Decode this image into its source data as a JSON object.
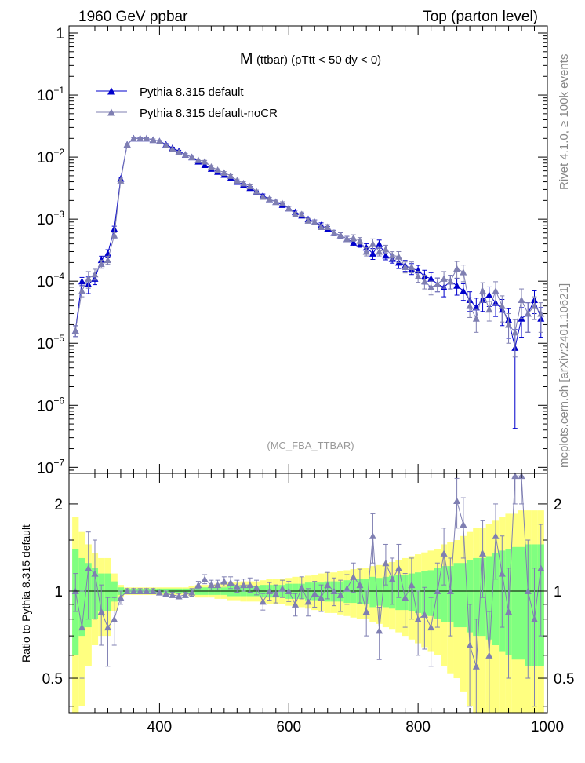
{
  "header": {
    "left": "1960 GeV ppbar",
    "right": "Top (parton level)",
    "side_top": "Rivet 4.1.0, ≥ 100k events",
    "side_bottom": "mcplots.cern.ch [arXiv:2401.10621]",
    "analysis": "(MC_FBA_TTBAR)"
  },
  "colors": {
    "default": "#0000cc",
    "nocr": "#7f7fb2",
    "band_yellow": "#ffff80",
    "band_green": "#80ff80"
  },
  "chart_data": [
    {
      "id": "main",
      "type": "line",
      "title": "M (ttbar) (pTtt < 50 dy < 0)",
      "title_main": "M",
      "title_sub": "(ttbar) (pTtt < 50 dy < 0)",
      "yscale": "log",
      "xlim": [
        260,
        1000
      ],
      "ylim": [
        8e-08,
        1.3
      ],
      "ytick_labels": [
        {
          "b": "1",
          "e": ""
        },
        {
          "b": "10",
          "e": "−1"
        },
        {
          "b": "10",
          "e": "−2"
        },
        {
          "b": "10",
          "e": "−3"
        },
        {
          "b": "10",
          "e": "−4"
        },
        {
          "b": "10",
          "e": "−5"
        },
        {
          "b": "10",
          "e": "−6"
        },
        {
          "b": "10",
          "e": "−7"
        }
      ],
      "legend": [
        "Pythia 8.315 default",
        "Pythia 8.315 default-noCR"
      ],
      "legend_position": "top-left",
      "series": [
        {
          "name": "Pythia 8.315 default",
          "x": [
            270,
            280,
            290,
            300,
            310,
            320,
            330,
            340,
            350,
            360,
            370,
            380,
            390,
            400,
            410,
            420,
            430,
            440,
            450,
            460,
            470,
            480,
            490,
            500,
            510,
            520,
            530,
            540,
            550,
            560,
            570,
            580,
            590,
            600,
            610,
            620,
            630,
            640,
            650,
            660,
            670,
            680,
            690,
            700,
            710,
            720,
            730,
            740,
            750,
            760,
            770,
            780,
            790,
            800,
            810,
            820,
            830,
            840,
            850,
            860,
            870,
            880,
            890,
            900,
            910,
            920,
            930,
            940,
            950,
            960,
            970,
            980,
            990
          ],
          "y": [
            1.6e-05,
            0.0001,
            9e-05,
            0.00011,
            0.00022,
            0.00028,
            0.0007,
            0.0045,
            0.016,
            0.02,
            0.02,
            0.02,
            0.019,
            0.018,
            0.016,
            0.014,
            0.0125,
            0.011,
            0.01,
            0.0085,
            0.0075,
            0.0065,
            0.0058,
            0.0052,
            0.0046,
            0.004,
            0.0036,
            0.0032,
            0.0027,
            0.0024,
            0.0021,
            0.0019,
            0.0017,
            0.0015,
            0.0013,
            0.00115,
            0.001,
            0.0009,
            0.0008,
            0.0007,
            0.0006,
            0.00055,
            0.00048,
            0.00042,
            0.0004,
            0.00035,
            0.00028,
            0.0004,
            0.00026,
            0.00023,
            0.0002,
            0.00018,
            0.00016,
            0.00015,
            0.00012,
            0.00011,
            9e-05,
            8e-05,
            0.0001,
            8.5e-05,
            7e-05,
            5e-05,
            3.8e-05,
            5e-05,
            6e-05,
            4.5e-05,
            3.5e-05,
            2.4e-05,
            8.5e-06,
            2.5e-05,
            3e-05,
            5e-05,
            2.5e-05
          ],
          "err_rel": [
            0.2,
            0.15,
            0.3,
            0.2,
            0.15,
            0.15,
            0.1,
            0.05,
            0.03,
            0.03,
            0.03,
            0.03,
            0.03,
            0.03,
            0.03,
            0.03,
            0.03,
            0.03,
            0.03,
            0.03,
            0.04,
            0.04,
            0.04,
            0.04,
            0.04,
            0.05,
            0.05,
            0.05,
            0.05,
            0.06,
            0.06,
            0.06,
            0.06,
            0.07,
            0.07,
            0.08,
            0.08,
            0.08,
            0.09,
            0.09,
            0.1,
            0.1,
            0.1,
            0.12,
            0.12,
            0.15,
            0.2,
            0.15,
            0.15,
            0.15,
            0.2,
            0.2,
            0.2,
            0.2,
            0.25,
            0.25,
            0.25,
            0.3,
            0.25,
            0.3,
            0.3,
            0.35,
            0.4,
            0.35,
            0.35,
            0.4,
            0.45,
            0.5,
            0.95,
            0.5,
            0.5,
            0.4,
            0.5
          ]
        },
        {
          "name": "Pythia 8.315 default-noCR",
          "x": [
            270,
            280,
            290,
            300,
            310,
            320,
            330,
            340,
            350,
            360,
            370,
            380,
            390,
            400,
            410,
            420,
            430,
            440,
            450,
            460,
            470,
            480,
            490,
            500,
            510,
            520,
            530,
            540,
            550,
            560,
            570,
            580,
            590,
            600,
            610,
            620,
            630,
            640,
            650,
            660,
            670,
            680,
            690,
            700,
            710,
            720,
            730,
            740,
            750,
            760,
            770,
            780,
            790,
            800,
            810,
            820,
            830,
            840,
            850,
            860,
            870,
            880,
            890,
            900,
            910,
            920,
            930,
            940,
            950,
            960,
            970,
            980,
            990
          ],
          "y": [
            1.6e-05,
            7e-05,
            0.00011,
            0.00013,
            0.00019,
            0.00022,
            0.00055,
            0.0042,
            0.016,
            0.02,
            0.02,
            0.02,
            0.019,
            0.018,
            0.0155,
            0.0135,
            0.012,
            0.011,
            0.01,
            0.009,
            0.0085,
            0.007,
            0.0062,
            0.0056,
            0.005,
            0.0042,
            0.0038,
            0.0034,
            0.0028,
            0.0023,
            0.0021,
            0.0019,
            0.0018,
            0.0015,
            0.0012,
            0.0012,
            0.00095,
            0.0009,
            0.00075,
            0.00075,
            0.0006,
            0.00055,
            0.00048,
            0.0005,
            0.00045,
            0.0003,
            0.0004,
            0.0003,
            0.00033,
            0.00026,
            0.00025,
            0.00017,
            0.00017,
            0.00012,
            0.0001,
            8e-05,
            9e-05,
            0.00011,
            0.0001,
            0.00016,
            0.00014,
            4e-05,
            2.5e-05,
            7e-05,
            3.5e-05,
            7e-05,
            4e-05,
            2e-05,
            1.5e-05,
            5e-05,
            3e-05,
            4e-05,
            3e-05
          ],
          "err_rel": [
            0.2,
            0.2,
            0.3,
            0.2,
            0.15,
            0.15,
            0.1,
            0.05,
            0.03,
            0.03,
            0.03,
            0.03,
            0.03,
            0.03,
            0.03,
            0.03,
            0.03,
            0.03,
            0.03,
            0.03,
            0.04,
            0.04,
            0.04,
            0.04,
            0.04,
            0.05,
            0.05,
            0.05,
            0.05,
            0.06,
            0.06,
            0.06,
            0.06,
            0.07,
            0.07,
            0.08,
            0.08,
            0.08,
            0.09,
            0.09,
            0.1,
            0.1,
            0.1,
            0.12,
            0.12,
            0.15,
            0.2,
            0.15,
            0.15,
            0.15,
            0.2,
            0.2,
            0.2,
            0.2,
            0.25,
            0.25,
            0.25,
            0.3,
            0.25,
            0.3,
            0.3,
            0.35,
            0.4,
            0.35,
            0.35,
            0.4,
            0.45,
            0.5,
            0.6,
            0.5,
            0.5,
            0.4,
            0.5
          ]
        }
      ]
    },
    {
      "id": "ratio",
      "type": "line",
      "ylabel": "Ratio to Pythia 8.315 default",
      "yscale": "log",
      "xlim": [
        260,
        1000
      ],
      "ylim": [
        0.38,
        2.55
      ],
      "xticks": [
        400,
        600,
        800,
        1000
      ],
      "yticks": [
        0.5,
        1,
        2
      ],
      "ytick_labels": [
        "0.5",
        "1",
        "2"
      ],
      "reference": 1,
      "x": [
        270,
        280,
        290,
        300,
        310,
        320,
        330,
        340,
        350,
        360,
        370,
        380,
        390,
        400,
        410,
        420,
        430,
        440,
        450,
        460,
        470,
        480,
        490,
        500,
        510,
        520,
        530,
        540,
        550,
        560,
        570,
        580,
        590,
        600,
        610,
        620,
        630,
        640,
        650,
        660,
        670,
        680,
        690,
        700,
        710,
        720,
        730,
        740,
        750,
        760,
        770,
        780,
        790,
        800,
        810,
        820,
        830,
        840,
        850,
        860,
        870,
        880,
        890,
        900,
        910,
        920,
        930,
        940,
        950,
        960,
        970,
        980,
        990
      ],
      "ratio": [
        1.0,
        0.75,
        1.2,
        1.15,
        0.85,
        0.75,
        0.8,
        0.95,
        1.0,
        1.0,
        1.0,
        1.0,
        1.0,
        0.99,
        0.98,
        0.97,
        0.96,
        0.97,
        0.99,
        1.05,
        1.1,
        1.05,
        1.05,
        1.08,
        1.07,
        1.04,
        1.05,
        1.05,
        1.03,
        0.92,
        1.0,
        0.98,
        1.02,
        1.0,
        0.9,
        1.03,
        0.92,
        0.98,
        0.95,
        1.05,
        1.0,
        0.97,
        1.02,
        1.12,
        1.05,
        0.85,
        1.55,
        0.73,
        1.25,
        1.1,
        1.2,
        0.95,
        1.05,
        0.8,
        0.83,
        0.75,
        1.0,
        1.35,
        1.0,
        2.05,
        1.7,
        0.65,
        0.55,
        1.35,
        0.6,
        1.55,
        1.15,
        0.85,
        2.5,
        2.5,
        1.0,
        0.8,
        1.2
      ],
      "ratio_err": [
        0.15,
        0.25,
        0.4,
        0.35,
        0.2,
        0.2,
        0.15,
        0.05,
        0.02,
        0.02,
        0.02,
        0.02,
        0.02,
        0.02,
        0.02,
        0.02,
        0.02,
        0.02,
        0.03,
        0.03,
        0.04,
        0.04,
        0.04,
        0.04,
        0.05,
        0.05,
        0.05,
        0.06,
        0.06,
        0.06,
        0.07,
        0.07,
        0.07,
        0.08,
        0.08,
        0.09,
        0.1,
        0.1,
        0.1,
        0.11,
        0.11,
        0.12,
        0.12,
        0.13,
        0.14,
        0.15,
        0.3,
        0.15,
        0.2,
        0.2,
        0.25,
        0.2,
        0.25,
        0.2,
        0.2,
        0.2,
        0.25,
        0.3,
        0.3,
        0.4,
        0.4,
        0.25,
        0.25,
        0.4,
        0.25,
        0.45,
        0.4,
        0.35,
        0.5,
        0.5,
        0.5,
        0.4,
        0.5
      ],
      "band_green_rel": [
        0.4,
        0.3,
        0.25,
        0.2,
        0.15,
        0.15,
        0.08,
        0.03,
        0.02,
        0.02,
        0.02,
        0.02,
        0.02,
        0.02,
        0.02,
        0.02,
        0.02,
        0.02,
        0.02,
        0.03,
        0.03,
        0.03,
        0.03,
        0.03,
        0.04,
        0.04,
        0.04,
        0.04,
        0.04,
        0.05,
        0.05,
        0.05,
        0.05,
        0.06,
        0.06,
        0.06,
        0.07,
        0.07,
        0.07,
        0.08,
        0.08,
        0.08,
        0.09,
        0.09,
        0.1,
        0.1,
        0.12,
        0.11,
        0.12,
        0.13,
        0.14,
        0.14,
        0.15,
        0.16,
        0.17,
        0.18,
        0.2,
        0.22,
        0.22,
        0.25,
        0.25,
        0.28,
        0.3,
        0.3,
        0.32,
        0.35,
        0.38,
        0.4,
        0.42,
        0.42,
        0.45,
        0.45,
        0.45
      ],
      "band_yellow_rel": [
        0.8,
        0.6,
        0.45,
        0.35,
        0.3,
        0.3,
        0.15,
        0.05,
        0.03,
        0.03,
        0.03,
        0.03,
        0.03,
        0.03,
        0.03,
        0.03,
        0.03,
        0.03,
        0.04,
        0.05,
        0.05,
        0.05,
        0.06,
        0.06,
        0.07,
        0.07,
        0.08,
        0.08,
        0.08,
        0.09,
        0.1,
        0.1,
        0.1,
        0.11,
        0.12,
        0.12,
        0.13,
        0.14,
        0.15,
        0.16,
        0.16,
        0.17,
        0.18,
        0.19,
        0.2,
        0.2,
        0.22,
        0.23,
        0.25,
        0.26,
        0.28,
        0.3,
        0.32,
        0.34,
        0.36,
        0.38,
        0.4,
        0.45,
        0.48,
        0.5,
        0.55,
        0.6,
        0.65,
        0.65,
        0.7,
        0.75,
        0.8,
        0.85,
        0.85,
        0.9,
        0.9,
        0.9,
        0.9
      ]
    }
  ]
}
